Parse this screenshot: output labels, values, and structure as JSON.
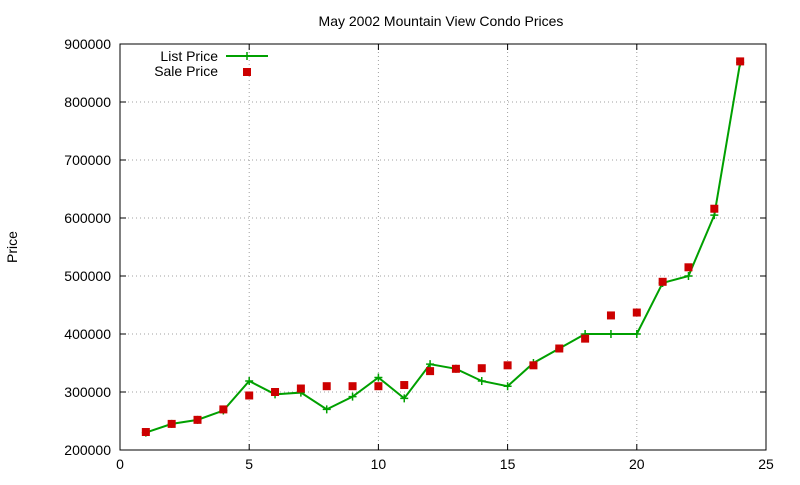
{
  "chart_data": {
    "type": "line",
    "title": "May 2002 Mountain View Condo Prices",
    "xlabel": "",
    "ylabel": "Price",
    "xlim": [
      0,
      25
    ],
    "ylim": [
      200000,
      900000
    ],
    "x_ticks": [
      0,
      5,
      10,
      15,
      20,
      25
    ],
    "y_ticks": [
      200000,
      300000,
      400000,
      500000,
      600000,
      700000,
      800000,
      900000
    ],
    "x_tick_labels": [
      "0",
      "5",
      "10",
      "15",
      "20",
      "25"
    ],
    "y_tick_labels": [
      "200000",
      "300000",
      "400000",
      "500000",
      "600000",
      "700000",
      "800000",
      "900000"
    ],
    "grid": true,
    "legend_position": "top-left",
    "series": [
      {
        "name": "List Price",
        "style": "line-with-plus-markers",
        "color": "#00a000",
        "x": [
          1,
          2,
          3,
          4,
          5,
          6,
          7,
          8,
          9,
          10,
          11,
          12,
          13,
          14,
          15,
          16,
          17,
          18,
          19,
          20,
          21,
          22,
          23,
          24
        ],
        "values": [
          230000,
          245000,
          252000,
          268000,
          319000,
          296000,
          299000,
          270000,
          292000,
          325000,
          289000,
          348000,
          340000,
          319000,
          310000,
          350000,
          375000,
          400000,
          400000,
          400000,
          488000,
          500000,
          605000,
          868000
        ]
      },
      {
        "name": "Sale Price",
        "style": "square-markers",
        "color": "#cc0000",
        "x": [
          1,
          2,
          3,
          4,
          5,
          6,
          7,
          8,
          9,
          10,
          11,
          12,
          13,
          14,
          15,
          16,
          17,
          18,
          19,
          20,
          21,
          22,
          23,
          24
        ],
        "values": [
          231000,
          245000,
          252000,
          270000,
          294000,
          300000,
          306000,
          310000,
          310000,
          310000,
          312000,
          336000,
          340000,
          341000,
          346000,
          346000,
          375000,
          392000,
          432000,
          437000,
          490000,
          515000,
          616000,
          870000
        ]
      }
    ]
  }
}
